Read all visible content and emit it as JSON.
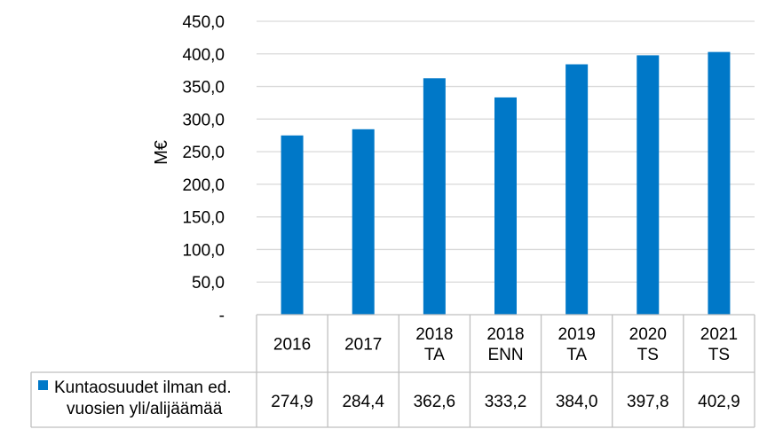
{
  "chart_data": {
    "type": "bar",
    "title": "",
    "xlabel": "",
    "ylabel": "M€",
    "ylim": [
      0,
      450
    ],
    "yticks": [
      "-",
      "50,0",
      "100,0",
      "150,0",
      "200,0",
      "250,0",
      "300,0",
      "350,0",
      "400,0",
      "450,0"
    ],
    "grid": true,
    "legend": "data-table",
    "categories": [
      [
        "2016"
      ],
      [
        "2017"
      ],
      [
        "2018",
        "TA"
      ],
      [
        "2018",
        "ENN"
      ],
      [
        "2019",
        "TA"
      ],
      [
        "2020",
        "TS"
      ],
      [
        "2021",
        "TS"
      ]
    ],
    "series": [
      {
        "name": [
          "Kuntaosuudet ilman ed.",
          "vuosien yli/alijäämää"
        ],
        "color": "#0078C8",
        "values": [
          274.9,
          284.4,
          362.6,
          333.2,
          384.0,
          397.8,
          402.9
        ],
        "value_labels": [
          "274,9",
          "284,4",
          "362,6",
          "333,2",
          "384,0",
          "397,8",
          "402,9"
        ]
      }
    ]
  }
}
